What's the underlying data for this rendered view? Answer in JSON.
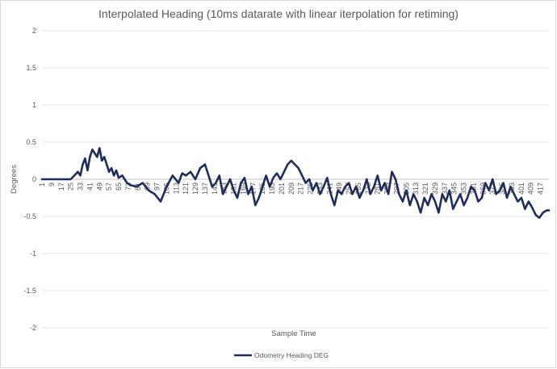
{
  "chart_data": {
    "type": "line",
    "title": "Interpolated Heading (10ms datarate with linear iterpolation for retiming)",
    "xlabel": "Sample Time",
    "ylabel": "Degrees",
    "ylim": [
      -2,
      2
    ],
    "yticks": [
      "2",
      "1.5",
      "1",
      "0.5",
      "0",
      "-0.5",
      "-1",
      "-1.5",
      "-2"
    ],
    "xlim": [
      1,
      424
    ],
    "xticks": [
      "1",
      "9",
      "17",
      "25",
      "33",
      "41",
      "49",
      "57",
      "65",
      "73",
      "81",
      "89",
      "97",
      "105",
      "113",
      "121",
      "129",
      "137",
      "145",
      "153",
      "161",
      "169",
      "177",
      "185",
      "193",
      "201",
      "209",
      "217",
      "225",
      "233",
      "241",
      "249",
      "257",
      "265",
      "273",
      "281",
      "289",
      "297",
      "305",
      "313",
      "321",
      "329",
      "337",
      "345",
      "353",
      "361",
      "369",
      "377",
      "385",
      "393",
      "401",
      "409",
      "417"
    ],
    "grid": true,
    "legend_position": "bottom",
    "series_color": "#1f2d5c",
    "series": [
      {
        "name": "Odometry Heading DEG",
        "x": [
          1,
          5,
          10,
          15,
          20,
          25,
          28,
          31,
          33,
          35,
          37,
          39,
          41,
          43,
          45,
          47,
          49,
          51,
          53,
          55,
          57,
          59,
          61,
          63,
          65,
          68,
          72,
          75,
          80,
          85,
          90,
          95,
          100,
          105,
          110,
          115,
          118,
          121,
          125,
          129,
          133,
          137,
          140,
          143,
          146,
          149,
          152,
          155,
          158,
          161,
          164,
          167,
          170,
          173,
          176,
          179,
          182,
          185,
          188,
          191,
          194,
          197,
          200,
          203,
          206,
          209,
          212,
          215,
          218,
          221,
          224,
          227,
          230,
          233,
          236,
          239,
          242,
          245,
          248,
          251,
          254,
          257,
          260,
          263,
          266,
          269,
          272,
          275,
          278,
          281,
          284,
          287,
          290,
          293,
          296,
          299,
          302,
          305,
          308,
          311,
          314,
          317,
          320,
          323,
          326,
          329,
          332,
          335,
          338,
          341,
          344,
          347,
          350,
          353,
          356,
          359,
          362,
          365,
          368,
          371,
          374,
          377,
          380,
          383,
          386,
          389,
          392,
          395,
          398,
          401,
          404,
          407,
          410,
          413,
          416,
          419,
          422,
          424
        ],
        "y": [
          0,
          0,
          0,
          0,
          0,
          0,
          0.05,
          0.1,
          0.05,
          0.2,
          0.28,
          0.12,
          0.3,
          0.4,
          0.35,
          0.3,
          0.42,
          0.25,
          0.3,
          0.2,
          0.1,
          0.15,
          0.05,
          0.12,
          0.02,
          0.05,
          -0.05,
          -0.08,
          -0.1,
          -0.05,
          -0.15,
          -0.2,
          -0.3,
          -0.1,
          0.05,
          -0.05,
          0.08,
          0.05,
          0.1,
          0.0,
          0.15,
          0.2,
          0.05,
          -0.1,
          -0.05,
          0.05,
          -0.2,
          -0.1,
          0.0,
          -0.15,
          -0.25,
          -0.05,
          0.02,
          -0.2,
          -0.1,
          -0.35,
          -0.25,
          -0.1,
          0.05,
          -0.1,
          0.02,
          0.08,
          0.0,
          0.1,
          0.2,
          0.25,
          0.2,
          0.15,
          0.05,
          -0.05,
          0.0,
          -0.15,
          -0.05,
          -0.2,
          -0.1,
          0.02,
          -0.2,
          -0.35,
          -0.15,
          -0.2,
          -0.1,
          -0.05,
          -0.2,
          -0.1,
          -0.25,
          -0.15,
          0.0,
          -0.2,
          -0.1,
          0.05,
          -0.15,
          -0.05,
          -0.2,
          0.1,
          0.0,
          -0.2,
          -0.3,
          -0.15,
          -0.35,
          -0.2,
          -0.3,
          -0.45,
          -0.25,
          -0.35,
          -0.2,
          -0.3,
          -0.45,
          -0.2,
          -0.3,
          -0.15,
          -0.4,
          -0.3,
          -0.2,
          -0.35,
          -0.25,
          -0.1,
          -0.15,
          -0.3,
          -0.25,
          -0.05,
          -0.15,
          0.0,
          -0.2,
          -0.15,
          -0.05,
          -0.25,
          -0.1,
          -0.2,
          -0.3,
          -0.25,
          -0.4,
          -0.3,
          -0.38,
          -0.48,
          -0.52,
          -0.45,
          -0.42,
          -0.42
        ]
      }
    ]
  }
}
